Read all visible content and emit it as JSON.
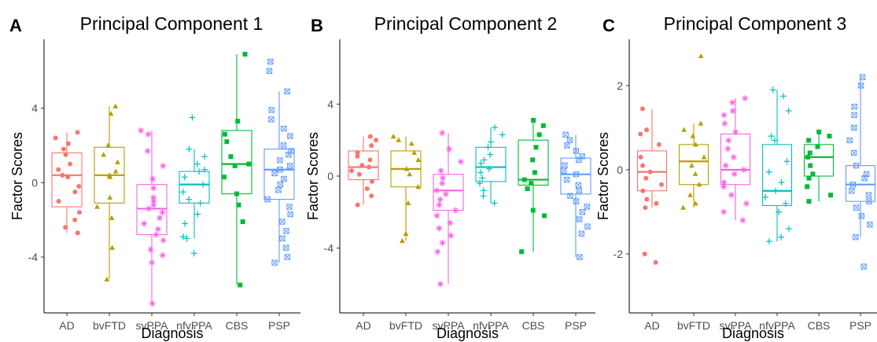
{
  "colors": {
    "AD": "#F8766D",
    "bvFTD": "#B79F00",
    "svPPA": "#F564E3",
    "nfvPPA": "#00BFC4",
    "CBS": "#00BA38",
    "PSP": "#619CFF"
  },
  "shapes": {
    "AD": "circle",
    "bvFTD": "triangle",
    "svPPA": "asterisk",
    "nfvPPA": "plus",
    "CBS": "square",
    "PSP": "boxed-x"
  },
  "chart_data": [
    {
      "type": "box",
      "panel_letter": "A",
      "title": "Principal Component 1",
      "xlabel": "Diagnosis",
      "ylabel": "Factor Scores",
      "categories": [
        "AD",
        "bvFTD",
        "svPPA",
        "nfvPPA",
        "CBS",
        "PSP"
      ],
      "yticks": [
        -4,
        0,
        4
      ],
      "ylim": [
        -7.0,
        7.7
      ],
      "boxes": [
        {
          "group": "AD",
          "whisker_low": -2.7,
          "q1": -1.3,
          "median": 0.4,
          "q3": 1.6,
          "whisker_high": 2.7
        },
        {
          "group": "bvFTD",
          "whisker_low": -5.2,
          "q1": -1.1,
          "median": 0.4,
          "q3": 1.9,
          "whisker_high": 4.1
        },
        {
          "group": "svPPA",
          "whisker_low": -6.5,
          "q1": -2.8,
          "median": -1.4,
          "q3": -0.1,
          "whisker_high": 2.8
        },
        {
          "group": "nfvPPA",
          "whisker_low": -3.0,
          "q1": -1.1,
          "median": -0.1,
          "q3": 0.6,
          "whisker_high": 1.8
        },
        {
          "group": "CBS",
          "whisker_low": -5.5,
          "q1": -0.6,
          "median": 1.0,
          "q3": 2.8,
          "whisker_high": 6.9
        },
        {
          "group": "PSP",
          "whisker_low": -4.3,
          "q1": -0.9,
          "median": 0.7,
          "q3": 1.8,
          "whisker_high": 4.9
        }
      ],
      "points": {
        "AD": [
          2.7,
          2.4,
          2.1,
          1.8,
          1.5,
          1.0,
          0.7,
          0.4,
          0.3,
          -0.2,
          -0.5,
          -1.0,
          -1.6,
          -2.0,
          -2.4,
          -2.7
        ],
        "bvFTD": [
          4.1,
          3.7,
          2.0,
          1.5,
          1.1,
          0.6,
          0.4,
          0.3,
          -0.8,
          -1.3,
          -1.9,
          -3.5,
          -5.2
        ],
        "svPPA": [
          2.8,
          2.6,
          1.7,
          0.9,
          0.2,
          -0.3,
          -0.8,
          -1.0,
          -1.2,
          -1.4,
          -1.6,
          -1.9,
          -2.2,
          -2.5,
          -2.8,
          -3.1,
          -3.6,
          -3.9,
          -4.3,
          -6.5
        ],
        "nfvPPA": [
          3.5,
          1.8,
          1.4,
          1.0,
          0.7,
          0.6,
          0.3,
          -0.1,
          -0.5,
          -0.9,
          -1.1,
          -1.7,
          -2.2,
          -2.9,
          -3.0,
          -3.8
        ],
        "CBS": [
          6.9,
          3.3,
          2.6,
          2.2,
          1.4,
          1.0,
          0.9,
          0.3,
          -0.6,
          -1.2,
          -2.1,
          -5.5
        ],
        "PSP": [
          6.5,
          6.0,
          4.9,
          3.9,
          3.4,
          2.9,
          2.5,
          2.0,
          1.7,
          1.5,
          1.2,
          0.9,
          0.7,
          0.5,
          0.2,
          -0.1,
          -0.4,
          -0.9,
          -1.3,
          -1.7,
          -2.1,
          -2.6,
          -3.0,
          -3.5,
          -4.0,
          -4.3
        ]
      }
    },
    {
      "type": "box",
      "panel_letter": "B",
      "title": "Principal Component 2",
      "xlabel": "Diagnosis",
      "ylabel": "Factor Scores",
      "categories": [
        "AD",
        "bvFTD",
        "svPPA",
        "nfvPPA",
        "CBS",
        "PSP"
      ],
      "yticks": [
        -4,
        0,
        4
      ],
      "ylim": [
        -7.6,
        7.6
      ],
      "boxes": [
        {
          "group": "AD",
          "whisker_low": -1.6,
          "q1": -0.2,
          "median": 0.5,
          "q3": 1.4,
          "whisker_high": 2.2
        },
        {
          "group": "bvFTD",
          "whisker_low": -3.6,
          "q1": -0.6,
          "median": 0.4,
          "q3": 1.4,
          "whisker_high": 2.2
        },
        {
          "group": "svPPA",
          "whisker_low": -6.0,
          "q1": -1.9,
          "median": -0.8,
          "q3": 0.1,
          "whisker_high": 2.4
        },
        {
          "group": "nfvPPA",
          "whisker_low": -1.5,
          "q1": -0.3,
          "median": 0.5,
          "q3": 1.6,
          "whisker_high": 2.7
        },
        {
          "group": "CBS",
          "whisker_low": -4.2,
          "q1": -0.5,
          "median": -0.2,
          "q3": 2.0,
          "whisker_high": 3.1
        },
        {
          "group": "PSP",
          "whisker_low": -4.5,
          "q1": -1.0,
          "median": 0.1,
          "q3": 1.0,
          "whisker_high": 2.3
        }
      ],
      "points": {
        "AD": [
          2.2,
          2.0,
          1.7,
          1.3,
          1.1,
          0.9,
          0.6,
          0.5,
          0.3,
          0.1,
          -0.3,
          -0.7,
          -1.1,
          -1.6
        ],
        "bvFTD": [
          2.2,
          2.0,
          1.8,
          1.3,
          0.9,
          0.4,
          0.1,
          -0.6,
          -1.5,
          -3.2,
          -3.6
        ],
        "svPPA": [
          2.4,
          1.5,
          0.8,
          0.3,
          -0.1,
          -0.4,
          -0.8,
          -1.0,
          -1.3,
          -1.6,
          -1.9,
          -2.2,
          -2.6,
          -2.9,
          -3.3,
          -3.7,
          -4.2,
          -6.0
        ],
        "nfvPPA": [
          2.7,
          2.3,
          1.9,
          1.6,
          1.2,
          0.9,
          0.7,
          0.4,
          0.2,
          -0.1,
          -0.4,
          -0.8,
          -1.1,
          -1.5
        ],
        "CBS": [
          3.1,
          2.8,
          2.3,
          1.6,
          0.9,
          0.2,
          -0.2,
          -0.4,
          -0.7,
          -1.9,
          -2.2,
          -4.2
        ],
        "PSP": [
          2.3,
          2.0,
          1.7,
          1.4,
          1.1,
          0.9,
          0.6,
          0.3,
          0.1,
          -0.2,
          -0.5,
          -0.8,
          -1.1,
          -1.4,
          -1.7,
          -2.0,
          -2.4,
          -2.8,
          -3.2,
          -4.5
        ]
      }
    },
    {
      "type": "box",
      "panel_letter": "C",
      "title": "Principal Component 3",
      "xlabel": "Diagnosis",
      "ylabel": "Factor Scores",
      "categories": [
        "AD",
        "bvFTD",
        "svPPA",
        "nfvPPA",
        "CBS",
        "PSP"
      ],
      "yticks": [
        -2,
        0,
        2
      ],
      "ylim": [
        -3.4,
        3.1
      ],
      "boxes": [
        {
          "group": "AD",
          "whisker_low": -0.9,
          "q1": -0.5,
          "median": -0.05,
          "q3": 0.45,
          "whisker_high": 1.45
        },
        {
          "group": "bvFTD",
          "whisker_low": -0.9,
          "q1": -0.35,
          "median": 0.2,
          "q3": 0.6,
          "whisker_high": 1.1
        },
        {
          "group": "svPPA",
          "whisker_low": -1.2,
          "q1": -0.35,
          "median": 0.0,
          "q3": 0.85,
          "whisker_high": 1.7
        },
        {
          "group": "nfvPPA",
          "whisker_low": -1.7,
          "q1": -0.85,
          "median": -0.5,
          "q3": 0.6,
          "whisker_high": 1.9
        },
        {
          "group": "CBS",
          "whisker_low": -0.75,
          "q1": -0.15,
          "median": 0.3,
          "q3": 0.6,
          "whisker_high": 0.9
        },
        {
          "group": "PSP",
          "whisker_low": -1.6,
          "q1": -0.75,
          "median": -0.35,
          "q3": 0.1,
          "whisker_high": 2.2
        }
      ],
      "points": {
        "AD": [
          1.45,
          0.95,
          0.85,
          0.6,
          0.3,
          0.1,
          -0.05,
          -0.2,
          -0.35,
          -0.5,
          -0.7,
          -0.8,
          -0.9,
          -2.0,
          -2.2
        ],
        "bvFTD": [
          2.7,
          1.1,
          0.95,
          0.8,
          0.6,
          0.3,
          0.1,
          -0.1,
          -0.35,
          -0.6,
          -0.8,
          -0.9
        ],
        "svPPA": [
          1.7,
          1.6,
          1.4,
          1.3,
          1.1,
          0.9,
          0.7,
          0.5,
          0.3,
          0.1,
          0.0,
          -0.1,
          -0.3,
          -0.4,
          -0.6,
          -0.8,
          -1.0,
          -1.2
        ],
        "nfvPPA": [
          1.9,
          1.75,
          1.4,
          0.8,
          0.7,
          0.2,
          -0.05,
          -0.3,
          -0.5,
          -0.65,
          -0.8,
          -1.0,
          -1.4,
          -1.6,
          -1.7
        ],
        "CBS": [
          0.9,
          0.8,
          0.7,
          0.55,
          0.4,
          0.3,
          0.1,
          -0.1,
          -0.2,
          -0.4,
          -0.6,
          -0.75
        ],
        "PSP": [
          2.2,
          2.0,
          1.5,
          1.3,
          1.0,
          0.7,
          0.4,
          0.1,
          -0.1,
          -0.2,
          -0.35,
          -0.5,
          -0.6,
          -0.75,
          -0.9,
          -1.1,
          -1.3,
          -1.6,
          -2.3
        ]
      }
    }
  ]
}
